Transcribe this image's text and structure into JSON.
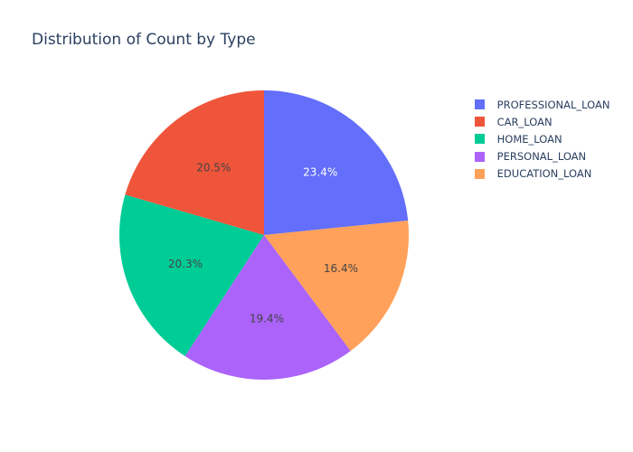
{
  "chart_data": {
    "type": "pie",
    "title": "Distribution of Count by Type",
    "slices": [
      {
        "label": " PROFESSIONAL_LOAN",
        "percent": 23.4,
        "text": "23.4%",
        "color": "#636efa",
        "text_color": "#ffffff"
      },
      {
        "label": " EDUCATION_LOAN",
        "percent": 16.4,
        "text": "16.4%",
        "color": "#ffa15a",
        "text_color": "#444444"
      },
      {
        "label": " PERSONAL_LOAN",
        "percent": 19.4,
        "text": "19.4%",
        "color": "#ab63fa",
        "text_color": "#444444"
      },
      {
        "label": " HOME_LOAN",
        "percent": 20.3,
        "text": "20.3%",
        "color": "#00cc96",
        "text_color": "#444444"
      },
      {
        "label": " CAR_LOAN",
        "percent": 20.5,
        "text": "20.5%",
        "color": "#ef553b",
        "text_color": "#444444"
      }
    ],
    "legend": [
      {
        "label": " PROFESSIONAL_LOAN",
        "color": "#636efa"
      },
      {
        "label": " CAR_LOAN",
        "color": "#ef553b"
      },
      {
        "label": " HOME_LOAN",
        "color": "#00cc96"
      },
      {
        "label": " PERSONAL_LOAN",
        "color": "#ab63fa"
      },
      {
        "label": " EDUCATION_LOAN",
        "color": "#ffa15a"
      }
    ],
    "legend_position": "top-right",
    "direction": "clockwise",
    "start": "top"
  }
}
